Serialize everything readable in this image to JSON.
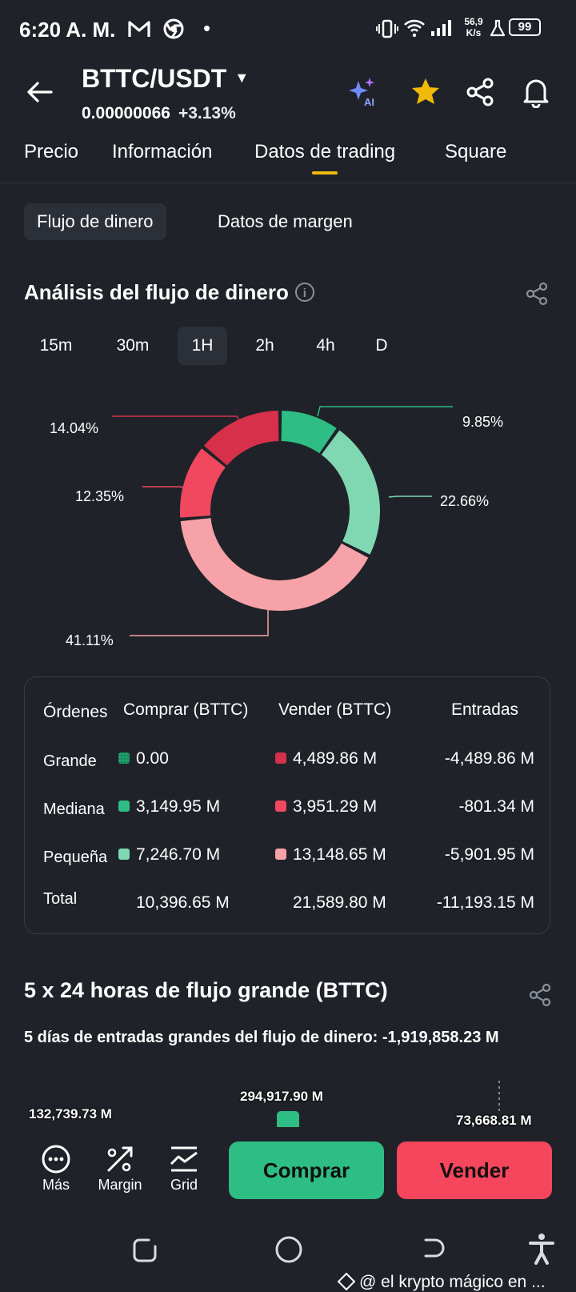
{
  "status_bar": {
    "time": "6:20 A. M.",
    "net_speed_top": "56,9",
    "net_speed_bottom": "K/s",
    "battery": "99"
  },
  "header": {
    "pair": "BTTC/USDT",
    "price": "0.00000066",
    "change": "+3.13%"
  },
  "tabs": [
    "Precio",
    "Información",
    "Datos de trading",
    "Square"
  ],
  "subtabs": [
    "Flujo de dinero",
    "Datos de margen"
  ],
  "analysis": {
    "title": "Análisis del flujo de dinero",
    "timeframes": [
      "15m",
      "30m",
      "1H",
      "2h",
      "4h",
      "D"
    ],
    "active_timeframe": "1H"
  },
  "chart_data": {
    "type": "pie",
    "slices": [
      {
        "label": "9.85%",
        "value": 9.85,
        "color": "#2ebd85"
      },
      {
        "label": "22.66%",
        "value": 22.66,
        "color": "#7fd8b1"
      },
      {
        "label": "41.11%",
        "value": 41.11,
        "color": "#f7a1a8"
      },
      {
        "label": "12.35%",
        "value": 12.35,
        "color": "#f0485e"
      },
      {
        "label": "14.04%",
        "value": 14.04,
        "color": "#d6304a"
      }
    ]
  },
  "table": {
    "headers": [
      "Órdenes",
      "Comprar (BTTC)",
      "Vender (BTTC)",
      "Entradas"
    ],
    "rows": [
      {
        "label": "Grande",
        "buy": "0.00",
        "sell": "4,489.86 M",
        "net": "-4,489.86 M",
        "buy_color": "#1a8c5f",
        "sell_color": "#d6304a"
      },
      {
        "label": "Mediana",
        "buy": "3,149.95 M",
        "sell": "3,951.29 M",
        "net": "-801.34 M",
        "buy_color": "#2ebd85",
        "sell_color": "#f0485e"
      },
      {
        "label": "Pequeña",
        "buy": "7,246.70 M",
        "sell": "13,148.65 M",
        "net": "-5,901.95 M",
        "buy_color": "#7fd8b1",
        "sell_color": "#f7a1a8"
      },
      {
        "label": "Total",
        "buy": "10,396.65 M",
        "sell": "21,589.80 M",
        "net": "-11,193.15 M"
      }
    ]
  },
  "large_flow": {
    "title": "5 x 24 horas de flujo grande (BTTC)",
    "subtitle": "5 días de entradas grandes del flujo de dinero: -1,919,858.23 M",
    "bar_labels": [
      "132,739.73 M",
      "294,917.90 M",
      "73,668.81 M"
    ]
  },
  "bottom_bar": {
    "more": "Más",
    "margin": "Margin",
    "grid": "Grid",
    "buy": "Comprar",
    "sell": "Vender"
  },
  "watermark": "@ el krypto mágico en ..."
}
